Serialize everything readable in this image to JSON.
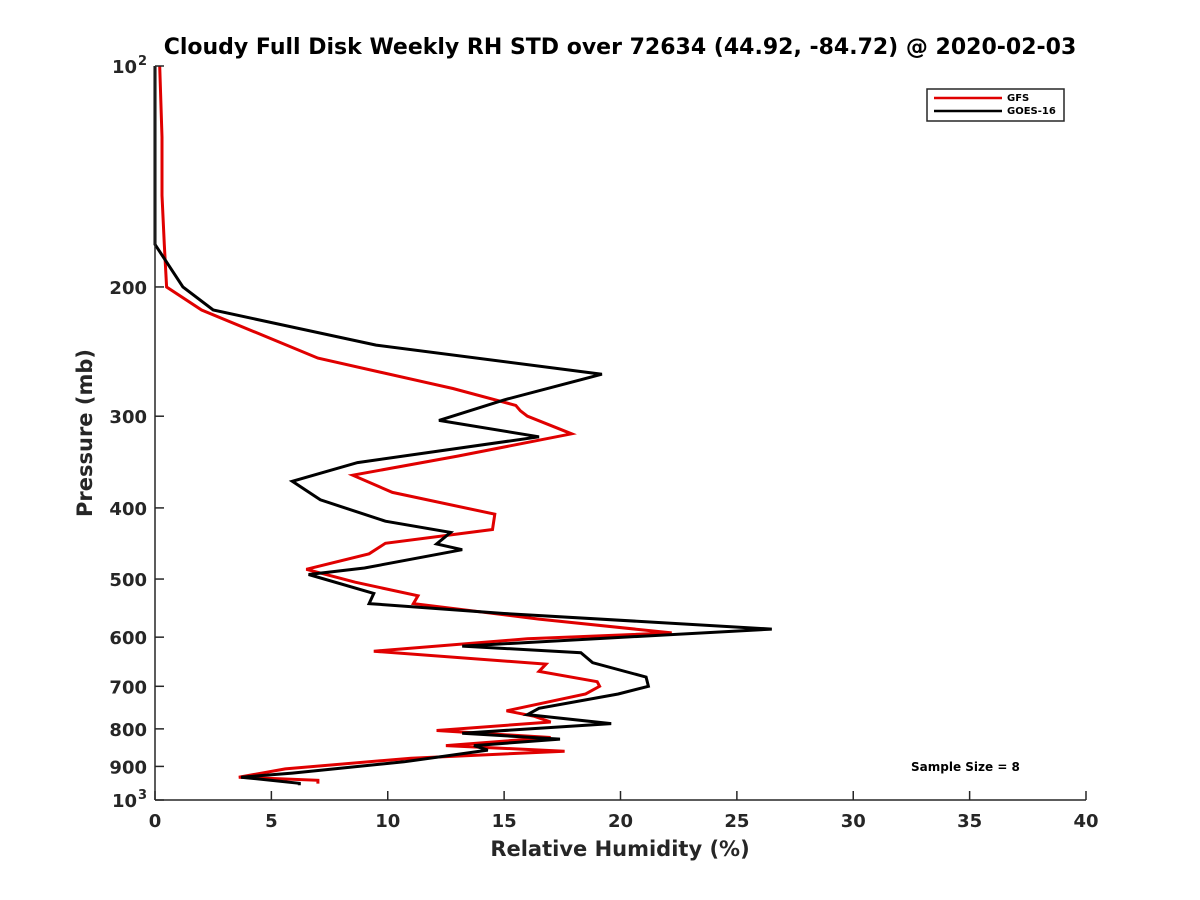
{
  "chart_data": {
    "type": "line",
    "title": "Cloudy Full Disk Weekly RH STD over 72634 (44.92, -84.72) @ 2020-02-03",
    "xlabel": "Relative Humidity (%)",
    "ylabel": "Pressure (mb)",
    "xlim": [
      0,
      40
    ],
    "ylim": [
      100,
      1000
    ],
    "yscale": "log",
    "y_reversed": true,
    "x_ticks": [
      "0",
      "5",
      "10",
      "15",
      "20",
      "25",
      "30",
      "35",
      "40"
    ],
    "y_ticks": [
      {
        "value": 100,
        "label": "10",
        "sup": "2"
      },
      {
        "value": 200,
        "label": "200",
        "sup": ""
      },
      {
        "value": 300,
        "label": "300",
        "sup": ""
      },
      {
        "value": 400,
        "label": "400",
        "sup": ""
      },
      {
        "value": 500,
        "label": "500",
        "sup": ""
      },
      {
        "value": 600,
        "label": "600",
        "sup": ""
      },
      {
        "value": 700,
        "label": "700",
        "sup": ""
      },
      {
        "value": 800,
        "label": "800",
        "sup": ""
      },
      {
        "value": 900,
        "label": "900",
        "sup": ""
      },
      {
        "value": 1000,
        "label": "10",
        "sup": "3"
      }
    ],
    "grid": false,
    "legend_position": "top-right",
    "annotation": "Sample Size = 8",
    "series": [
      {
        "name": "GFS",
        "color": "#e00000",
        "points": [
          [
            0.2,
            100
          ],
          [
            0.3,
            125
          ],
          [
            0.3,
            150
          ],
          [
            0.4,
            175
          ],
          [
            0.5,
            200
          ],
          [
            2.0,
            215
          ],
          [
            7.0,
            250
          ],
          [
            12.8,
            275
          ],
          [
            15.5,
            290
          ],
          [
            15.7,
            295
          ],
          [
            16.0,
            300
          ],
          [
            17.9,
            317
          ],
          [
            13.0,
            340
          ],
          [
            8.5,
            361
          ],
          [
            10.2,
            381
          ],
          [
            14.6,
            408
          ],
          [
            14.5,
            428
          ],
          [
            9.9,
            447
          ],
          [
            9.2,
            462
          ],
          [
            6.5,
            485
          ],
          [
            8.6,
            505
          ],
          [
            11.3,
            527
          ],
          [
            11.1,
            540
          ],
          [
            16.5,
            567
          ],
          [
            22.2,
            592
          ],
          [
            16.0,
            603
          ],
          [
            9.4,
            627
          ],
          [
            16.8,
            653
          ],
          [
            16.5,
            668
          ],
          [
            19.0,
            690
          ],
          [
            19.1,
            700
          ],
          [
            18.5,
            717
          ],
          [
            15.1,
            756
          ],
          [
            16.3,
            769
          ],
          [
            17.0,
            783
          ],
          [
            12.1,
            804
          ],
          [
            17.0,
            822
          ],
          [
            12.5,
            843
          ],
          [
            17.6,
            858
          ],
          [
            11.0,
            877
          ],
          [
            5.6,
            907
          ],
          [
            3.6,
            931
          ],
          [
            7.0,
            940
          ],
          [
            7.0,
            950
          ]
        ]
      },
      {
        "name": "GOES-16",
        "color": "#000000",
        "points": [
          [
            0.0,
            100
          ],
          [
            0.0,
            125
          ],
          [
            0.0,
            150
          ],
          [
            0.0,
            175
          ],
          [
            1.2,
            200
          ],
          [
            2.5,
            215
          ],
          [
            9.5,
            240
          ],
          [
            19.2,
            263
          ],
          [
            15.0,
            285
          ],
          [
            12.2,
            304
          ],
          [
            16.5,
            320
          ],
          [
            8.7,
            347
          ],
          [
            5.9,
            368
          ],
          [
            7.1,
            390
          ],
          [
            9.9,
            417
          ],
          [
            12.7,
            432
          ],
          [
            12.1,
            448
          ],
          [
            13.2,
            456
          ],
          [
            9.0,
            483
          ],
          [
            6.6,
            493
          ],
          [
            9.4,
            523
          ],
          [
            9.2,
            540
          ],
          [
            15.0,
            557
          ],
          [
            26.5,
            585
          ],
          [
            13.2,
            617
          ],
          [
            18.3,
            630
          ],
          [
            18.8,
            650
          ],
          [
            21.1,
            680
          ],
          [
            21.2,
            700
          ],
          [
            19.9,
            717
          ],
          [
            16.5,
            750
          ],
          [
            16.0,
            765
          ],
          [
            19.6,
            787
          ],
          [
            13.2,
            811
          ],
          [
            17.4,
            826
          ],
          [
            13.7,
            843
          ],
          [
            14.3,
            855
          ],
          [
            10.7,
            887
          ],
          [
            5.9,
            919
          ],
          [
            3.7,
            931
          ],
          [
            6.2,
            949
          ],
          [
            6.2,
            955
          ]
        ]
      }
    ]
  }
}
